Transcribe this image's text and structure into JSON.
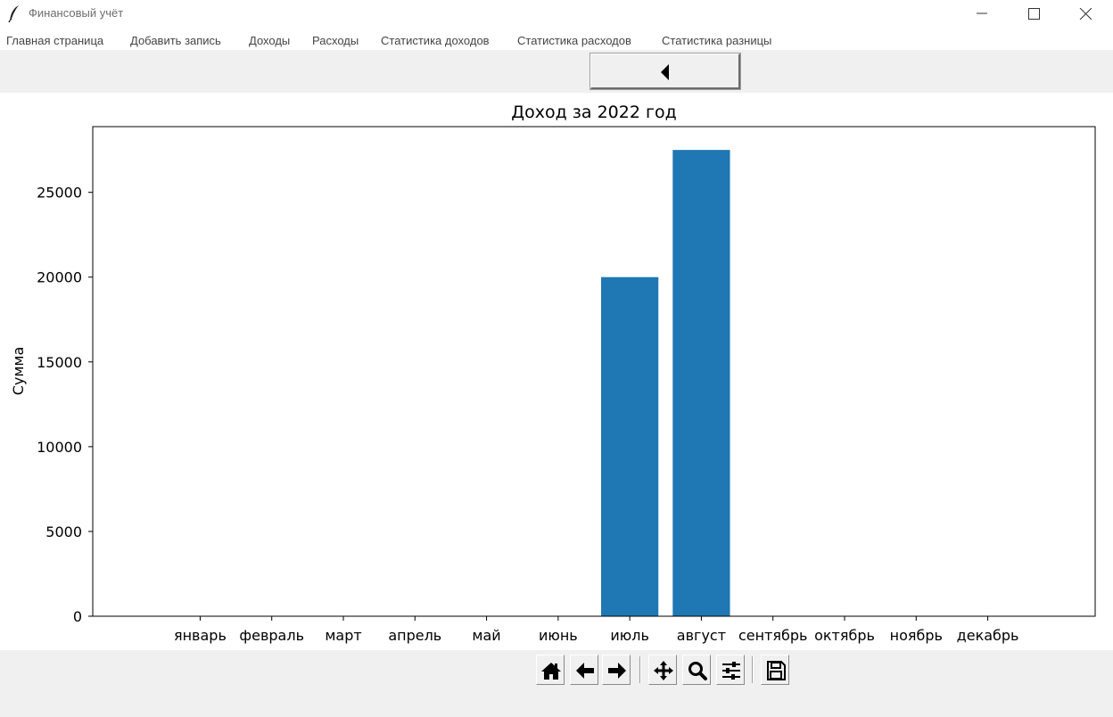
{
  "window": {
    "title": "Финансовый учёт"
  },
  "menu": {
    "items": [
      "Главная страница",
      "Добавить запись",
      "Доходы",
      "Расходы",
      "Статистика доходов",
      "Статистика расходов",
      "Статистика разницы"
    ]
  },
  "chart_data": {
    "type": "bar",
    "title": "Доход за 2022 год",
    "ylabel": "Сумма",
    "xlabel": "",
    "categories": [
      "январь",
      "февраль",
      "март",
      "апрель",
      "май",
      "июнь",
      "июль",
      "август",
      "сентябрь",
      "октябрь",
      "ноябрь",
      "декабрь"
    ],
    "values": [
      0,
      0,
      0,
      0,
      0,
      0,
      20000,
      27500,
      0,
      0,
      0,
      0
    ],
    "ylim": [
      0,
      28875
    ],
    "yticks": [
      0,
      5000,
      10000,
      15000,
      20000,
      25000
    ],
    "bar_color": "#1f77b4",
    "grid": false
  },
  "toolbar": {
    "buttons": [
      "home-icon",
      "back-arrow-icon",
      "forward-arrow-icon",
      "pan-icon",
      "zoom-icon",
      "configure-subplots-icon",
      "save-icon"
    ]
  }
}
